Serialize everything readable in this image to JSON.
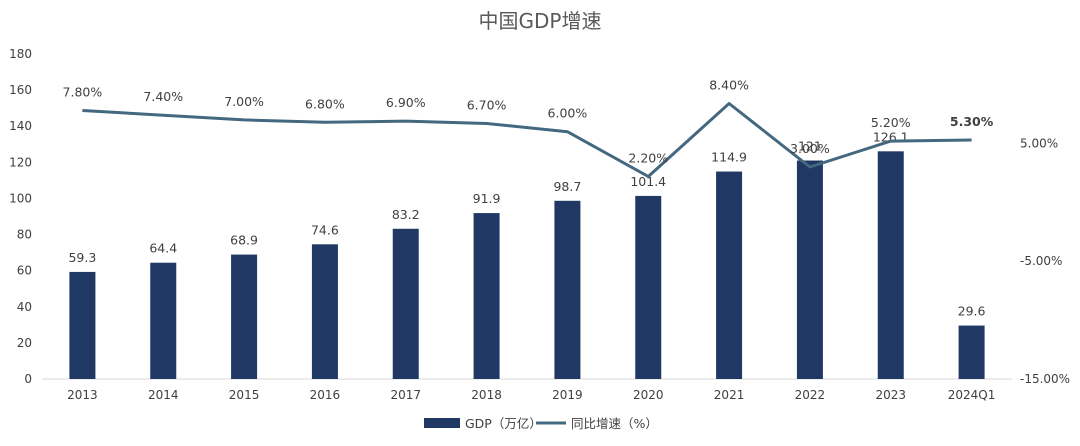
{
  "chart_data": {
    "type": "bar",
    "title": "中国GDP增速",
    "categories": [
      "2013",
      "2014",
      "2015",
      "2016",
      "2017",
      "2018",
      "2019",
      "2020",
      "2021",
      "2022",
      "2023",
      "2024Q1"
    ],
    "series": [
      {
        "name": "GDP（万亿）",
        "type": "bar",
        "axis": "left",
        "color": "#203864",
        "values": [
          59.3,
          64.4,
          68.9,
          74.6,
          83.2,
          91.9,
          98.7,
          101.4,
          114.9,
          121,
          126.1,
          29.6
        ],
        "labels": [
          "59.3",
          "64.4",
          "68.9",
          "74.6",
          "83.2",
          "91.9",
          "98.7",
          "101.4",
          "114.9",
          "121",
          "126.1",
          "29.6"
        ]
      },
      {
        "name": "同比增速（%）",
        "type": "line",
        "axis": "right",
        "color": "#44687F",
        "values": [
          7.8,
          7.4,
          7.0,
          6.8,
          6.9,
          6.7,
          6.0,
          2.2,
          8.4,
          3.0,
          5.2,
          5.3
        ],
        "labels": [
          "7.80%",
          "7.40%",
          "7.00%",
          "6.80%",
          "6.90%",
          "6.70%",
          "6.00%",
          "2.20%",
          "8.40%",
          "3.00%",
          "5.20%",
          "5.30%"
        ],
        "highlight_last_color": "#C00000"
      }
    ],
    "y_left": {
      "ylim": [
        0,
        180
      ],
      "ticks": [
        "0",
        "20",
        "40",
        "60",
        "80",
        "100",
        "120",
        "140",
        "160",
        "180"
      ]
    },
    "y_right": {
      "ylim": [
        -15,
        12.6
      ],
      "ticks": [
        {
          "value": 5,
          "label": "5.00%"
        },
        {
          "value": -5,
          "label": "-5.00%"
        },
        {
          "value": -15,
          "label": "-15.00%"
        }
      ]
    },
    "legend_position": "bottom",
    "grid": false
  }
}
